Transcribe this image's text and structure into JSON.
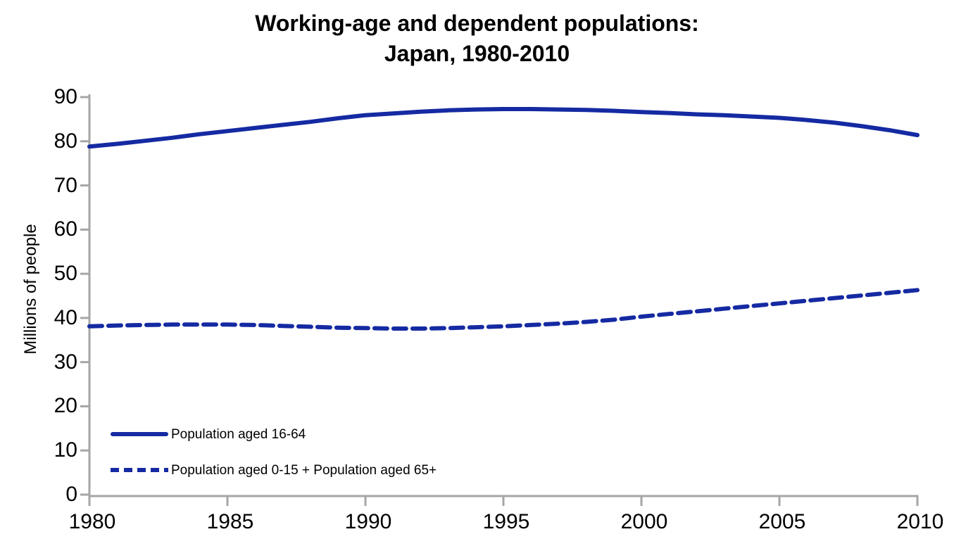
{
  "title": {
    "line1": "Working-age and dependent populations:",
    "line2": "Japan, 1980-2010"
  },
  "y_axis": {
    "label": "Millions of people",
    "ticks": [
      0,
      10,
      20,
      30,
      40,
      50,
      60,
      70,
      80,
      90
    ]
  },
  "x_axis": {
    "ticks": [
      1980,
      1985,
      1990,
      1995,
      2000,
      2005,
      2010
    ]
  },
  "legend": [
    {
      "label": "Population aged 16-64",
      "style": "solid"
    },
    {
      "label": "Population aged 0-15 + Population aged 65+",
      "style": "dashed"
    }
  ],
  "colors": {
    "line": "#152AA2",
    "axis": "#A6A6A6",
    "text": "#000000",
    "background": "#FFFFFF"
  },
  "chart_data": {
    "type": "line",
    "title": "Working-age and dependent populations: Japan, 1980-2010",
    "xlabel": "",
    "ylabel": "Millions of people",
    "ylim": [
      0,
      90
    ],
    "xlim": [
      1980,
      2010
    ],
    "grid": false,
    "legend_position": "inside-lower-left",
    "x": [
      1980,
      1981,
      1982,
      1983,
      1984,
      1985,
      1986,
      1987,
      1988,
      1989,
      1990,
      1991,
      1992,
      1993,
      1994,
      1995,
      1996,
      1997,
      1998,
      1999,
      2000,
      2001,
      2002,
      2003,
      2004,
      2005,
      2006,
      2007,
      2008,
      2009,
      2010
    ],
    "series": [
      {
        "name": "Population aged 16-64",
        "style": "solid",
        "values": [
          78.8,
          79.4,
          80.1,
          80.8,
          81.6,
          82.3,
          83.0,
          83.7,
          84.4,
          85.2,
          85.9,
          86.3,
          86.7,
          87.0,
          87.2,
          87.3,
          87.3,
          87.2,
          87.1,
          86.9,
          86.6,
          86.4,
          86.1,
          85.9,
          85.6,
          85.3,
          84.8,
          84.2,
          83.4,
          82.5,
          81.4
        ]
      },
      {
        "name": "Population aged 0-15 + Population aged 65+",
        "style": "dashed",
        "values": [
          38.1,
          38.3,
          38.4,
          38.5,
          38.5,
          38.5,
          38.4,
          38.2,
          38.0,
          37.8,
          37.7,
          37.6,
          37.6,
          37.7,
          37.9,
          38.1,
          38.4,
          38.7,
          39.1,
          39.6,
          40.3,
          40.9,
          41.5,
          42.1,
          42.7,
          43.3,
          43.9,
          44.5,
          45.1,
          45.7,
          46.3
        ]
      }
    ]
  }
}
